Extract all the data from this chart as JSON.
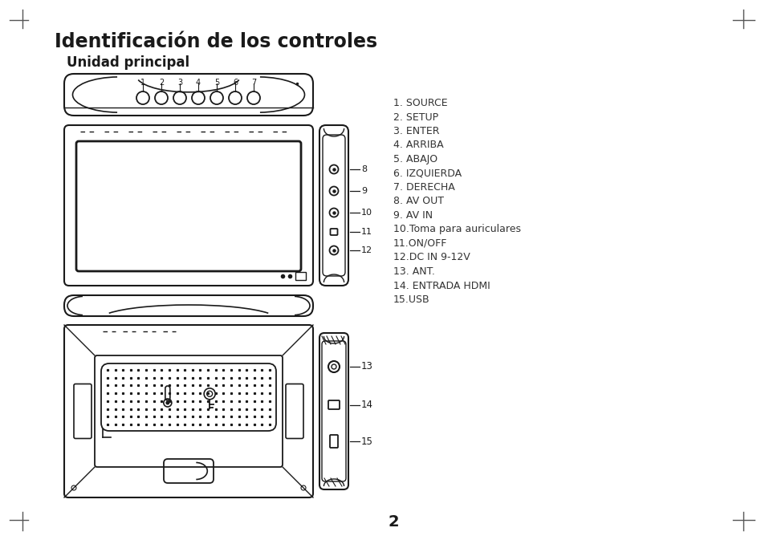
{
  "title": "Identificación de los controles",
  "subtitle": "Unidad principal",
  "bg_color": "#ffffff",
  "text_color": "#1a1a1a",
  "labels": [
    "1. SOURCE",
    "2. SETUP",
    "3. ENTER",
    "4. ARRIBA",
    "5. ABAJO",
    "6. IZQUIERDA",
    "7. DERECHA",
    "8. AV OUT",
    "9. AV IN",
    "10.Toma para auriculares",
    "11.ON/OFF",
    "12.DC IN 9-12V",
    "13. ANT.",
    "14. ENTRADA HDMI",
    "15.USB"
  ],
  "page_number": "2",
  "lc": "#1a1a1a",
  "corner_lc": "#555555"
}
